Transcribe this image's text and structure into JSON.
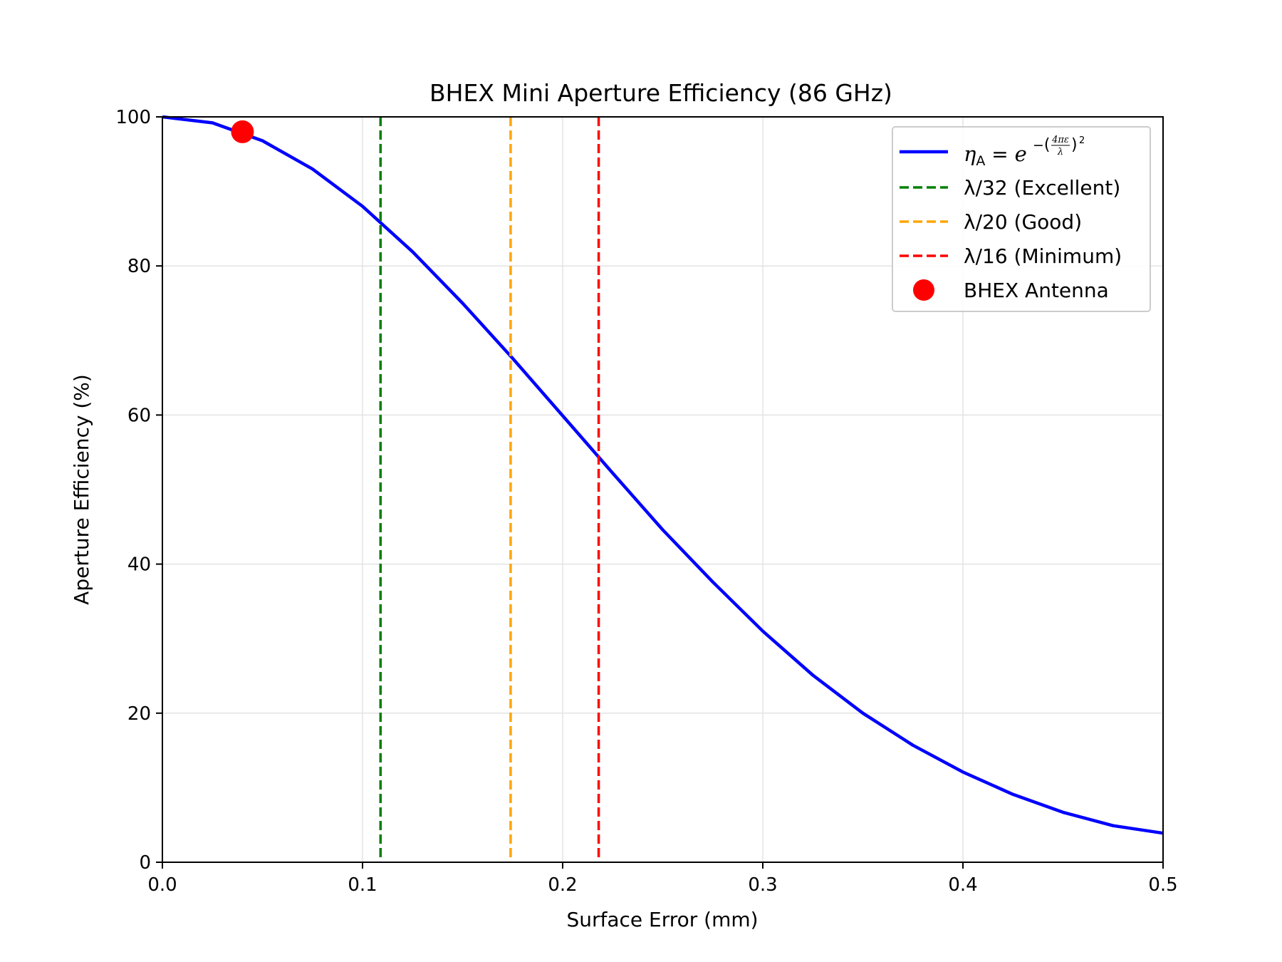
{
  "chart_data": {
    "type": "line",
    "title": "BHEX Mini Aperture Efficiency (86 GHz)",
    "xlabel": "Surface Error (mm)",
    "ylabel": "Aperture Efficiency (%)",
    "xlim": [
      0.0,
      0.5
    ],
    "ylim": [
      0,
      100
    ],
    "xticks": [
      "0.0",
      "0.1",
      "0.2",
      "0.3",
      "0.4",
      "0.5"
    ],
    "yticks": [
      "0",
      "20",
      "40",
      "60",
      "80",
      "100"
    ],
    "grid": true,
    "legend_position": "top-right",
    "curve": {
      "label": "η_A = e^-(4πε/λ)^2",
      "color": "#0000ff",
      "x": [
        0.0,
        0.025,
        0.05,
        0.075,
        0.1,
        0.125,
        0.15,
        0.175,
        0.2,
        0.225,
        0.25,
        0.275,
        0.3,
        0.325,
        0.35,
        0.375,
        0.4,
        0.425,
        0.45,
        0.475,
        0.5
      ],
      "y": [
        100.0,
        99.2,
        96.8,
        93.0,
        88.0,
        81.9,
        75.0,
        67.6,
        59.9,
        52.2,
        44.6,
        37.6,
        31.0,
        25.1,
        20.0,
        15.7,
        12.1,
        9.1,
        6.7,
        4.9,
        3.9
      ]
    },
    "series": [
      {
        "name": "η_A = e^-(4πε/λ)^2",
        "type": "line",
        "color": "#0000ff"
      },
      {
        "name": "λ/32 (Excellent)",
        "type": "vline",
        "x": 0.109,
        "color": "#008000"
      },
      {
        "name": "λ/20 (Good)",
        "type": "vline",
        "x": 0.174,
        "color": "#ffa500"
      },
      {
        "name": "λ/16 (Minimum)",
        "type": "vline",
        "x": 0.218,
        "color": "#ff0000"
      },
      {
        "name": "BHEX Antenna",
        "type": "point",
        "x": 0.04,
        "y": 98.0,
        "color": "#ff0000"
      }
    ],
    "legend": {
      "formula": {
        "eta": "η",
        "sub": "A",
        "e": "e",
        "minus": "−",
        "num": "4πε",
        "den": "λ",
        "power": "2"
      },
      "entries": [
        "λ/32 (Excellent)",
        "λ/20 (Good)",
        "λ/16 (Minimum)",
        "BHEX Antenna"
      ]
    }
  }
}
